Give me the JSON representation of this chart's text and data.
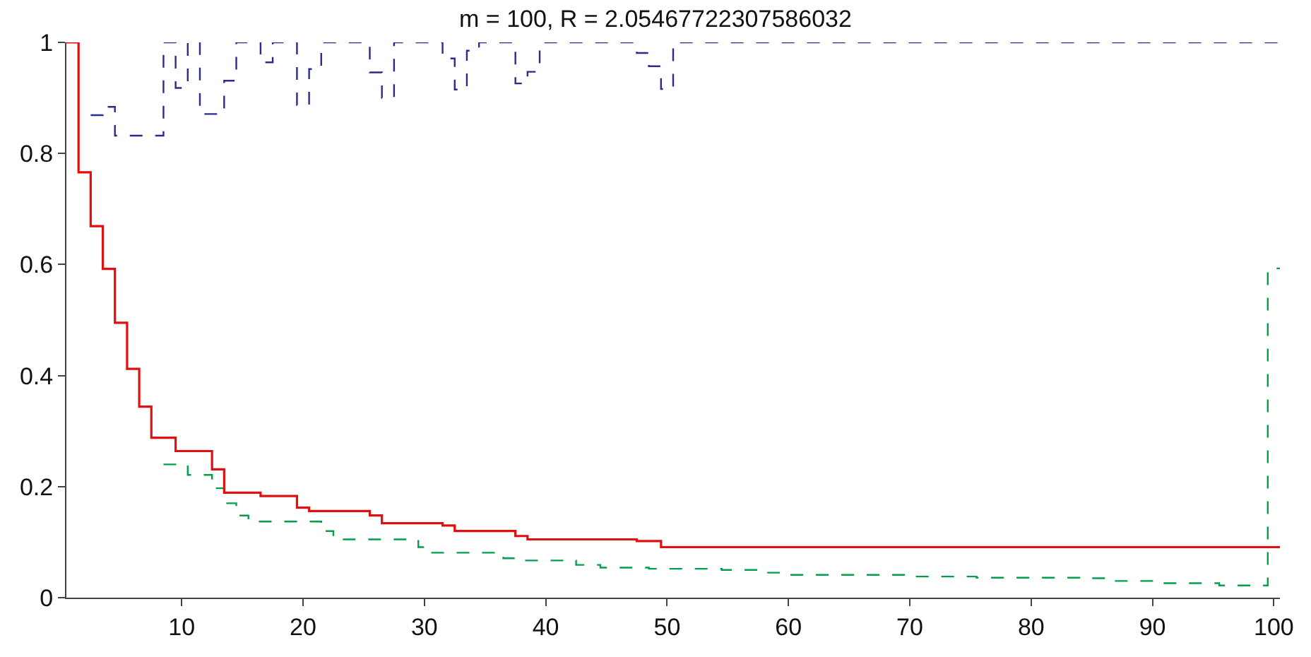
{
  "chart_data": {
    "type": "step",
    "title": "m = 100, R = 2.05467722307586032",
    "xlim": [
      0.5,
      100.5
    ],
    "ylim": [
      0,
      1
    ],
    "xticks": [
      10,
      20,
      30,
      40,
      50,
      60,
      70,
      80,
      90,
      100
    ],
    "yticks": [
      0,
      0.2,
      0.4,
      0.6,
      0.8,
      1
    ],
    "legend": false,
    "marker": "none",
    "series": [
      {
        "color": "#2b2b8f",
        "line_style": "dashed",
        "x": [
          2.5,
          3.5,
          4.5,
          8.5,
          9.5,
          10.5,
          11.5,
          13.5,
          14.5,
          16.5,
          17.5,
          19.5,
          20.5,
          21.5,
          25.5,
          26.5,
          27.5,
          31.5,
          32.5,
          33.5,
          34.5,
          37.5,
          38.5,
          39.5,
          47.5,
          48.5,
          49.5,
          50.5,
          100.5
        ],
        "values": [
          0.869,
          0.884,
          0.832,
          1,
          0.918,
          1,
          0.871,
          0.931,
          1,
          0.964,
          1,
          0.887,
          0.952,
          1,
          0.946,
          0.9,
          1,
          0.971,
          0.915,
          0.985,
          1,
          0.926,
          0.947,
          1,
          0.981,
          0.957,
          0.916,
          1,
          1
        ]
      },
      {
        "color": "#00a04a",
        "line_style": "dashed",
        "x": [
          8.5,
          10.5,
          12.5,
          13.5,
          14.5,
          15.5,
          21.5,
          22.5,
          29.5,
          30.5,
          36.5,
          37.5,
          42.5,
          44.5,
          48.5,
          54.5,
          57.5,
          59.5,
          70.5,
          75.5,
          84.5,
          86.5,
          90.5,
          95.5,
          99.5,
          100.5
        ],
        "values": [
          0.24,
          0.221,
          0.197,
          0.17,
          0.148,
          0.137,
          0.12,
          0.105,
          0.091,
          0.081,
          0.071,
          0.067,
          0.059,
          0.054,
          0.052,
          0.05,
          0.045,
          0.041,
          0.038,
          0.036,
          0.035,
          0.03,
          0.026,
          0.022,
          0.593,
          0.593
        ]
      },
      {
        "color": "#e01010",
        "line_style": "solid",
        "x": [
          0.5,
          1.5,
          2.5,
          3.5,
          4.5,
          5.5,
          6.5,
          7.5,
          9.5,
          12.5,
          13.5,
          16.5,
          19.5,
          20.5,
          25.5,
          26.5,
          31.5,
          32.5,
          37.5,
          38.5,
          47.5,
          49.5,
          100.5
        ],
        "values": [
          1,
          0.766,
          0.669,
          0.592,
          0.495,
          0.412,
          0.344,
          0.288,
          0.264,
          0.231,
          0.189,
          0.183,
          0.162,
          0.156,
          0.148,
          0.134,
          0.13,
          0.12,
          0.111,
          0.105,
          0.102,
          0.091,
          0.091
        ]
      }
    ]
  }
}
